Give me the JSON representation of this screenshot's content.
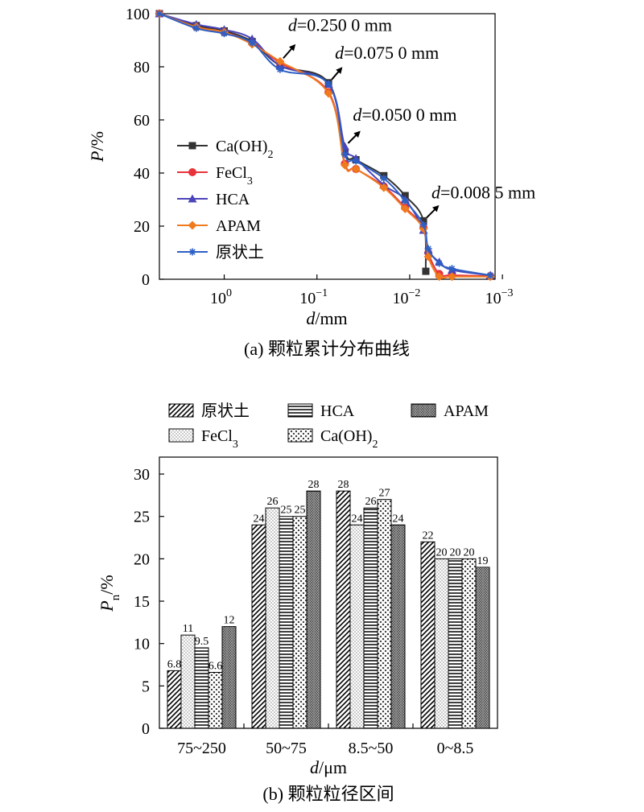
{
  "colors": {
    "Ca(OH)2": "#333333",
    "FeCl3": "#e8323c",
    "HCA": "#4b44b8",
    "APAM": "#f07a1e",
    "原状土": "#2d5fc4"
  },
  "chart_data": [
    {
      "type": "line",
      "caption": "(a) 颗粒累计分布曲线",
      "xlabel": "d/mm",
      "ylabel": "P/%",
      "xscale": "log",
      "x_reversed": true,
      "xlim": [
        5,
        0.0012
      ],
      "ylim": [
        0,
        100
      ],
      "xticks": [
        {
          "value": 1,
          "label": "10",
          "exp": "0"
        },
        {
          "value": 0.1,
          "label": "10",
          "exp": "−1"
        },
        {
          "value": 0.01,
          "label": "10",
          "exp": "−2"
        },
        {
          "value": 0.001,
          "label": "10",
          "exp": "−3"
        }
      ],
      "yticks": [
        0,
        20,
        40,
        60,
        80,
        100
      ],
      "legend_position": "middle-left",
      "series": [
        {
          "name": "Ca(OH)2",
          "marker": "square",
          "x": [
            5,
            2,
            1,
            0.5,
            0.25,
            0.075,
            0.05,
            0.038,
            0.019,
            0.0112,
            0.0071,
            0.0067
          ],
          "y": [
            100,
            95.5,
            93.5,
            89.5,
            80.5,
            74,
            48,
            45,
            39,
            31.5,
            22,
            3
          ]
        },
        {
          "name": "FeCl3",
          "marker": "circle",
          "x": [
            5,
            2,
            1,
            0.5,
            0.25,
            0.075,
            0.05,
            0.038,
            0.019,
            0.0112,
            0.0071,
            0.0063,
            0.0048,
            0.0035,
            0.00135
          ],
          "y": [
            100,
            95,
            93,
            89,
            81.5,
            70.5,
            43.5,
            41.5,
            35,
            27,
            19.5,
            10,
            2,
            1.5,
            1.2
          ]
        },
        {
          "name": "HCA",
          "marker": "triangle",
          "x": [
            5,
            2,
            1,
            0.5,
            0.25,
            0.075,
            0.05,
            0.038,
            0.019,
            0.0112,
            0.0071,
            0.0063,
            0.0048,
            0.0035,
            0.00135
          ],
          "y": [
            100,
            96,
            94,
            90.5,
            80.5,
            73.5,
            50,
            45.5,
            35.5,
            30,
            18.5,
            11,
            6.5,
            3.5,
            1.5
          ]
        },
        {
          "name": "APAM",
          "marker": "diamond",
          "x": [
            5,
            2,
            1,
            0.5,
            0.25,
            0.075,
            0.05,
            0.038,
            0.019,
            0.0112,
            0.0071,
            0.0063,
            0.0048,
            0.0035,
            0.00135
          ],
          "y": [
            100,
            95,
            93,
            88.5,
            82,
            70,
            43,
            41.5,
            34.5,
            26.5,
            19,
            8.5,
            1,
            1,
            1
          ]
        },
        {
          "name": "原状土",
          "marker": "asterisk",
          "x": [
            5,
            2,
            1,
            0.5,
            0.25,
            0.075,
            0.05,
            0.038,
            0.019,
            0.0112,
            0.0071,
            0.0063,
            0.0048,
            0.0035,
            0.00135
          ],
          "y": [
            100,
            94.5,
            92.5,
            89,
            79,
            73.5,
            47,
            44.5,
            38,
            29.5,
            20.5,
            11.5,
            6,
            4,
            1.5
          ]
        }
      ],
      "annotations": [
        {
          "italic": "d",
          "text": "=0.250 0 mm",
          "x": 0.25,
          "y": 82
        },
        {
          "italic": "d",
          "text": "=0.075 0 mm",
          "x": 0.075,
          "y": 74
        },
        {
          "italic": "d",
          "text": "=0.050 0 mm",
          "x": 0.05,
          "y": 50
        },
        {
          "italic": "d",
          "text": "=0.008 5 mm",
          "x": 0.0071,
          "y": 22
        }
      ]
    },
    {
      "type": "bar",
      "caption": "(b) 颗粒粒径区间",
      "xlabel": "d/μm",
      "ylabel": "Pn/%",
      "ylim": [
        0,
        32
      ],
      "yticks": [
        0,
        5,
        10,
        15,
        20,
        25,
        30
      ],
      "categories": [
        "75~250",
        "50~75",
        "8.5~50",
        "0~8.5"
      ],
      "legend_position": "top",
      "series": [
        {
          "name": "原状土",
          "pattern": "diag",
          "values": [
            6.8,
            24,
            28,
            22
          ],
          "labels": [
            "6.8",
            "24",
            "28",
            "22"
          ]
        },
        {
          "name": "FeCl3",
          "pattern": "dots",
          "values": [
            11,
            26,
            24,
            20
          ],
          "labels": [
            "11",
            "26",
            "24",
            "20"
          ]
        },
        {
          "name": "HCA",
          "pattern": "hlines",
          "values": [
            9.5,
            25,
            26,
            20
          ],
          "labels": [
            "9.5",
            "25",
            "26",
            "20"
          ]
        },
        {
          "name": "Ca(OH)2",
          "pattern": "cross",
          "values": [
            6.6,
            25,
            27,
            20
          ],
          "labels": [
            "6.6",
            "25",
            "27",
            "20"
          ]
        },
        {
          "name": "APAM",
          "pattern": "wave",
          "values": [
            12,
            28,
            24,
            19
          ],
          "labels": [
            "12",
            "28",
            "24",
            "19"
          ]
        }
      ]
    }
  ]
}
